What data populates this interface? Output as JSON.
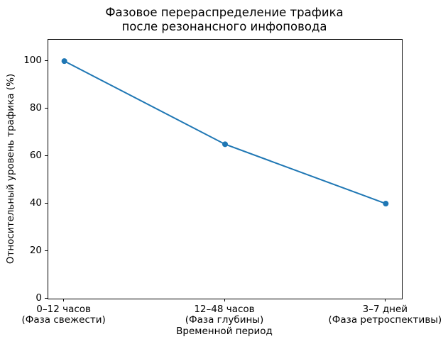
{
  "chart_data": {
    "type": "line",
    "title": "Фазовое перераспределение трафика\nпосле резонансного инфоповода",
    "xlabel": "Временной период",
    "ylabel": "Относительный уровень трафика (%)",
    "categories": [
      "0–12 часов\n(Фаза свежести)",
      "12–48 часов\n(Фаза глубины)",
      "3–7 дней\n(Фаза ретроспективы)"
    ],
    "values": [
      100,
      65,
      40
    ],
    "yticks": [
      0,
      20,
      40,
      60,
      80,
      100
    ],
    "ylim": [
      0,
      109
    ],
    "grid": false,
    "legend": null,
    "marker": "o",
    "line_color": "#1f77b4",
    "axis_color": "#000000",
    "background_color": "#ffffff"
  }
}
